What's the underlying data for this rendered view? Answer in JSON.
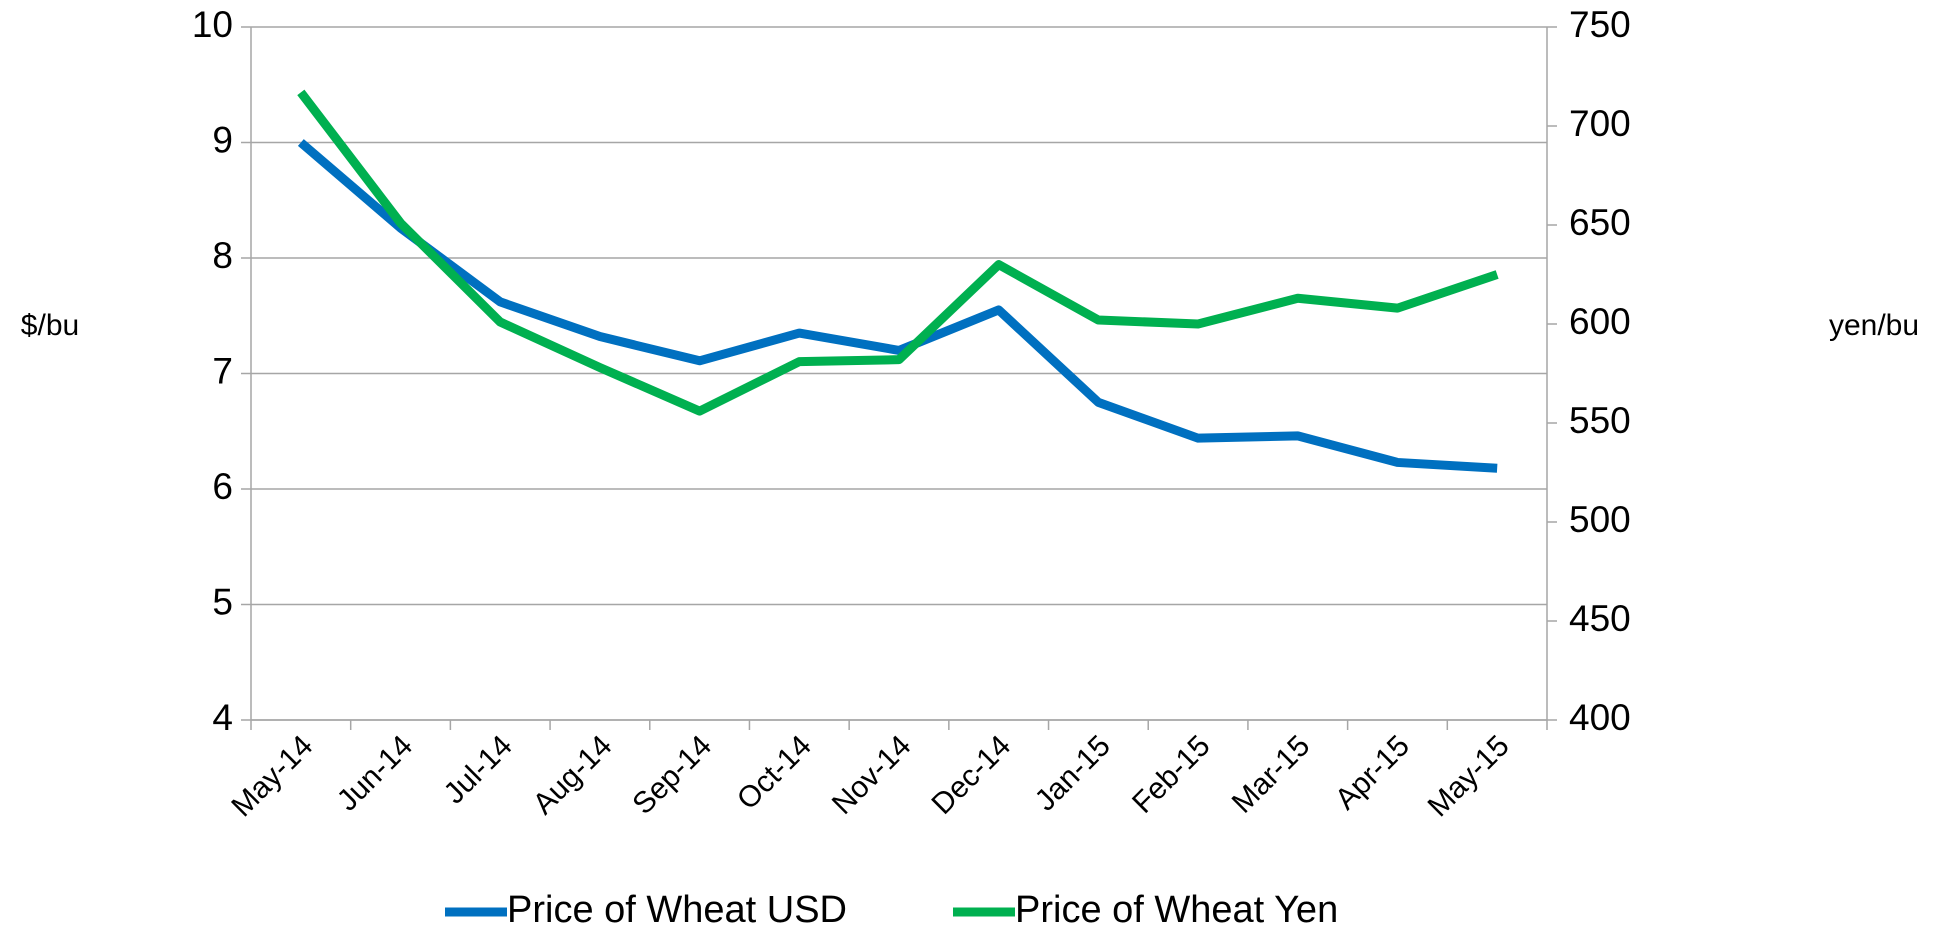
{
  "chart_data": {
    "type": "line",
    "categories": [
      "May-14",
      "Jun-14",
      "Jul-14",
      "Aug-14",
      "Sep-14",
      "Oct-14",
      "Nov-14",
      "Dec-14",
      "Jan-15",
      "Feb-15",
      "Mar-15",
      "Apr-15",
      "May-15"
    ],
    "series": [
      {
        "name": "Price of Wheat USD",
        "color": "#0070c0",
        "values": [
          9.0,
          8.26,
          7.62,
          7.32,
          7.11,
          7.35,
          7.2,
          7.55,
          6.75,
          6.44,
          6.46,
          6.23,
          6.18
        ]
      },
      {
        "name": "Price of Wheat Yen",
        "color": "#00b050",
        "axis": "y2",
        "values": [
          717,
          651,
          601,
          578,
          556,
          581,
          582,
          630,
          602,
          600,
          613,
          608,
          625
        ]
      }
    ],
    "y_label": "$/bu",
    "y2_label": "yen/bu",
    "ylim": [
      4,
      10
    ],
    "yticks": [
      4,
      5,
      6,
      7,
      8,
      9,
      10
    ],
    "y2lim": [
      400,
      750
    ],
    "y2ticks": [
      400,
      450,
      500,
      550,
      600,
      650,
      700,
      750
    ],
    "grid": true,
    "legend": "bottom"
  }
}
